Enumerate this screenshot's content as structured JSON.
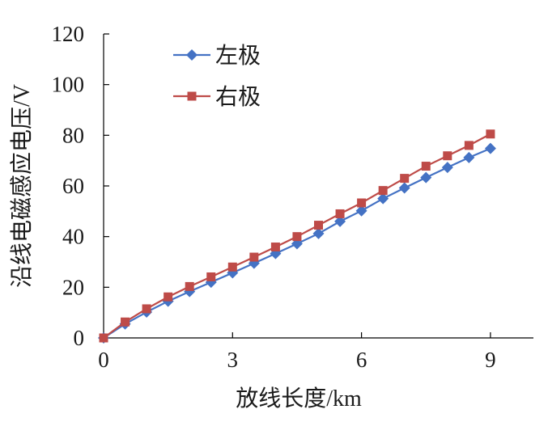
{
  "chart_data": {
    "type": "line",
    "xlabel": "放线长度/km",
    "ylabel": "沿线电磁感应电压/V",
    "xlim": [
      0,
      10
    ],
    "ylim": [
      0,
      120
    ],
    "xticks": [
      0,
      3,
      6,
      9
    ],
    "yticks": [
      0,
      20,
      40,
      60,
      80,
      100,
      120
    ],
    "grid": false,
    "legend_position": "top-left",
    "x": [
      0,
      0.5,
      1,
      1.5,
      2,
      2.5,
      3,
      3.5,
      4,
      4.5,
      5,
      5.5,
      6,
      6.5,
      7,
      7.5,
      8,
      8.5,
      9
    ],
    "series": [
      {
        "name": "左极",
        "color": "#4472C4",
        "marker": "diamond",
        "values": [
          0,
          5.5,
          10.2,
          14.5,
          18.3,
          22.0,
          25.7,
          29.5,
          33.3,
          37.2,
          41.2,
          46.0,
          50.2,
          55.0,
          59.2,
          63.3,
          67.3,
          71.2,
          74.8
        ]
      },
      {
        "name": "右极",
        "color": "#BE4B48",
        "marker": "square",
        "values": [
          0,
          6.3,
          11.5,
          16.2,
          20.3,
          24.1,
          28.0,
          31.9,
          35.9,
          40.0,
          44.5,
          49.0,
          53.3,
          58.2,
          63.0,
          67.8,
          71.9,
          76.0,
          80.5
        ]
      }
    ]
  }
}
